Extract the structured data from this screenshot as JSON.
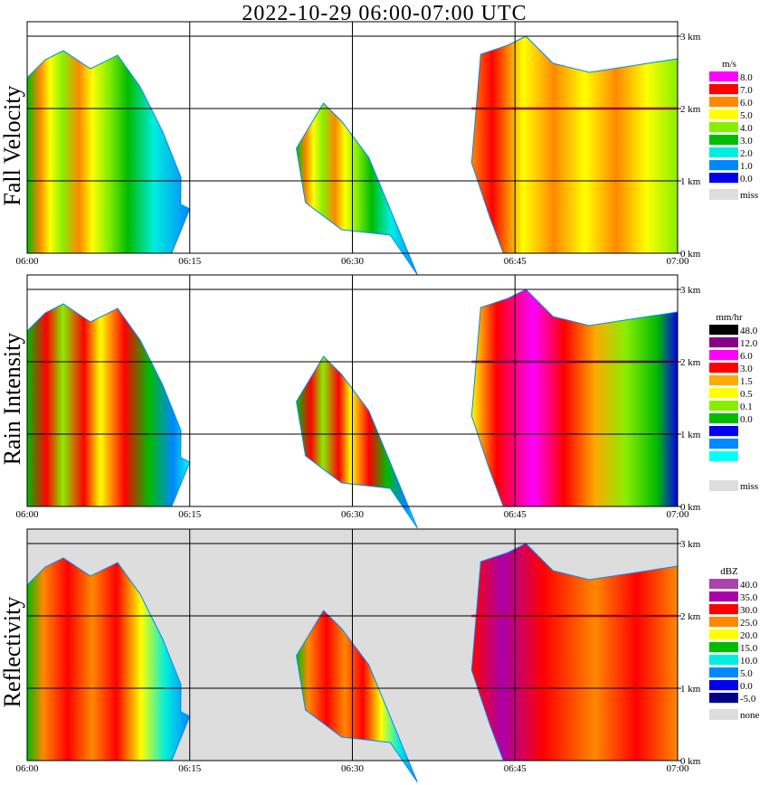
{
  "title": "2022-10-29   06:00-07:00 UTC",
  "x_ticks": [
    "06:00",
    "06:15",
    "06:30",
    "06:45",
    "07:00"
  ],
  "panels": [
    {
      "label": "Fall Velocity",
      "unit": "m/s",
      "legend": [
        {
          "label": "8.0",
          "color": "#ff00ff"
        },
        {
          "label": "7.0",
          "color": "#ff0000"
        },
        {
          "label": "6.0",
          "color": "#ff8800"
        },
        {
          "label": "5.0",
          "color": "#ffff00"
        },
        {
          "label": "4.0",
          "color": "#88ee00"
        },
        {
          "label": "3.0",
          "color": "#00bb00"
        },
        {
          "label": "2.0",
          "color": "#00eedd"
        },
        {
          "label": "1.0",
          "color": "#0088ff"
        },
        {
          "label": "0.0",
          "color": "#0000ee"
        }
      ],
      "missing_label": "miss",
      "missing_color": "#dddddd",
      "background": "#ffffff"
    },
    {
      "label": "Rain Intensity",
      "unit": "mm/hr",
      "legend": [
        {
          "label": "48.0",
          "color": "#000000"
        },
        {
          "label": "12.0",
          "color": "#880088"
        },
        {
          "label": "6.0",
          "color": "#ff00ff"
        },
        {
          "label": "3.0",
          "color": "#ff0000"
        },
        {
          "label": "1.5",
          "color": "#ffaa00"
        },
        {
          "label": "0.5",
          "color": "#ffff00"
        },
        {
          "label": "0.1",
          "color": "#88ee00"
        },
        {
          "label": "0.0",
          "color": "#00bb00"
        }
      ],
      "legend_extra": [
        {
          "color": "#0000ee"
        },
        {
          "color": "#0088ff"
        },
        {
          "color": "#00ffff"
        },
        {
          "color": "#ffffff"
        }
      ],
      "missing_label": "miss",
      "missing_color": "#dddddd",
      "background": "#ffffff"
    },
    {
      "label": "Reflectivity",
      "unit": "dBZ",
      "legend": [
        {
          "label": "40.0",
          "color": "#aa44aa"
        },
        {
          "label": "35.0",
          "color": "#aa00aa"
        },
        {
          "label": "30.0",
          "color": "#ff0000"
        },
        {
          "label": "25.0",
          "color": "#ff8800"
        },
        {
          "label": "20.0",
          "color": "#ffff00"
        },
        {
          "label": "15.0",
          "color": "#00bb00"
        },
        {
          "label": "10.0",
          "color": "#00eedd"
        },
        {
          "label": "5.0",
          "color": "#0088ff"
        },
        {
          "label": "0.0",
          "color": "#0000ee"
        },
        {
          "label": "-5.0",
          "color": "#000088"
        }
      ],
      "missing_label": "none",
      "missing_color": "#dddddd",
      "background": "#dddddd"
    }
  ],
  "chart_data": {
    "type": "heatmap",
    "x_axis": {
      "start": "06:00",
      "end": "07:00",
      "ticks": [
        "06:00",
        "06:15",
        "06:30",
        "06:45",
        "07:00"
      ]
    },
    "y_axis": {
      "unit": "km",
      "ticks": [
        "0 km",
        "1 km",
        "2 km",
        "3 km"
      ],
      "range_km": [
        0,
        3.2
      ]
    },
    "echo_segments": [
      {
        "start": "06:00",
        "end": "06:15",
        "max_height_km": 2.8
      },
      {
        "start": "06:24",
        "end": "06:36",
        "max_height_km": 2.2
      },
      {
        "start": "06:41",
        "end": "07:00",
        "max_height_km": 3.0
      }
    ],
    "bright_band_height_km": 2.0
  }
}
